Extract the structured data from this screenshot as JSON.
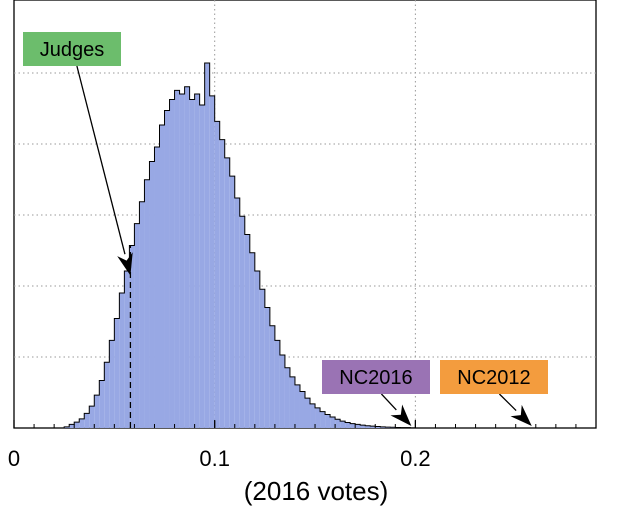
{
  "chart_data": {
    "type": "bar",
    "title": "",
    "xlabel": "(2016 votes)",
    "ylabel": "",
    "xlim": [
      0,
      0.29
    ],
    "ylim": [
      0,
      1.0
    ],
    "grid": true,
    "bar_color": "#98a8e4",
    "x_ticks": [
      {
        "value": 0.0,
        "label": "0"
      },
      {
        "value": 0.1,
        "label": "0.1"
      },
      {
        "value": 0.2,
        "label": "0.2"
      }
    ],
    "bins": {
      "start": 0.025,
      "width": 0.0025,
      "values": [
        0.003,
        0.01,
        0.016,
        0.025,
        0.04,
        0.06,
        0.09,
        0.13,
        0.18,
        0.24,
        0.3,
        0.37,
        0.43,
        0.5,
        0.56,
        0.62,
        0.68,
        0.73,
        0.77,
        0.83,
        0.87,
        0.9,
        0.925,
        0.915,
        0.935,
        0.9,
        0.915,
        0.885,
        1.0,
        0.91,
        0.84,
        0.79,
        0.74,
        0.69,
        0.63,
        0.58,
        0.53,
        0.48,
        0.43,
        0.38,
        0.33,
        0.28,
        0.24,
        0.2,
        0.165,
        0.14,
        0.118,
        0.1,
        0.082,
        0.066,
        0.055,
        0.045,
        0.037,
        0.03,
        0.024,
        0.019,
        0.015,
        0.012,
        0.01,
        0.008,
        0.006,
        0.005,
        0.004,
        0.003,
        0.0025,
        0.002,
        0.0015,
        0.001,
        0.001,
        0.0005
      ]
    },
    "annotations": [
      {
        "label": "Judges",
        "value": 0.058,
        "color": "#6cbd6c",
        "line": "dashed"
      },
      {
        "label": "NC2016",
        "value": 0.198,
        "color": "#9a73b4",
        "line": "none"
      },
      {
        "label": "NC2012",
        "value": 0.258,
        "color": "#f39c3e",
        "line": "none"
      }
    ]
  }
}
